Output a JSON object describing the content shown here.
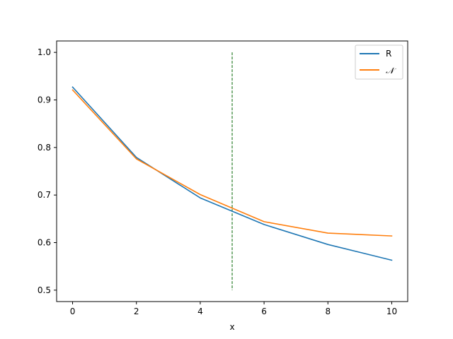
{
  "chart_data": {
    "type": "line",
    "title": "",
    "xlabel": "x",
    "ylabel": "",
    "xlim": [
      -0.5,
      10.5
    ],
    "ylim": [
      0.476,
      1.024
    ],
    "xticks": [
      0,
      2,
      4,
      6,
      8,
      10
    ],
    "xtick_labels": [
      "0",
      "2",
      "4",
      "6",
      "8",
      "10"
    ],
    "yticks": [
      0.5,
      0.6,
      0.7,
      0.8,
      0.9,
      1.0
    ],
    "ytick_labels": [
      "0.5",
      "0.6",
      "0.7",
      "0.8",
      "0.9",
      "1.0"
    ],
    "grid": false,
    "legend_position": "top-right",
    "x": [
      0,
      2,
      4,
      6,
      8,
      10
    ],
    "series": [
      {
        "name": "R",
        "color": "#1f77b4",
        "values": [
          0.927,
          0.779,
          0.694,
          0.638,
          0.596,
          0.563
        ]
      },
      {
        "name": "𝒩",
        "color": "#ff7f0e",
        "values": [
          0.921,
          0.776,
          0.701,
          0.644,
          0.62,
          0.614
        ]
      }
    ],
    "vline": {
      "x": 5,
      "ymin": 0.5,
      "ymax": 1.0,
      "color": "#006400",
      "style": "dashed"
    }
  }
}
